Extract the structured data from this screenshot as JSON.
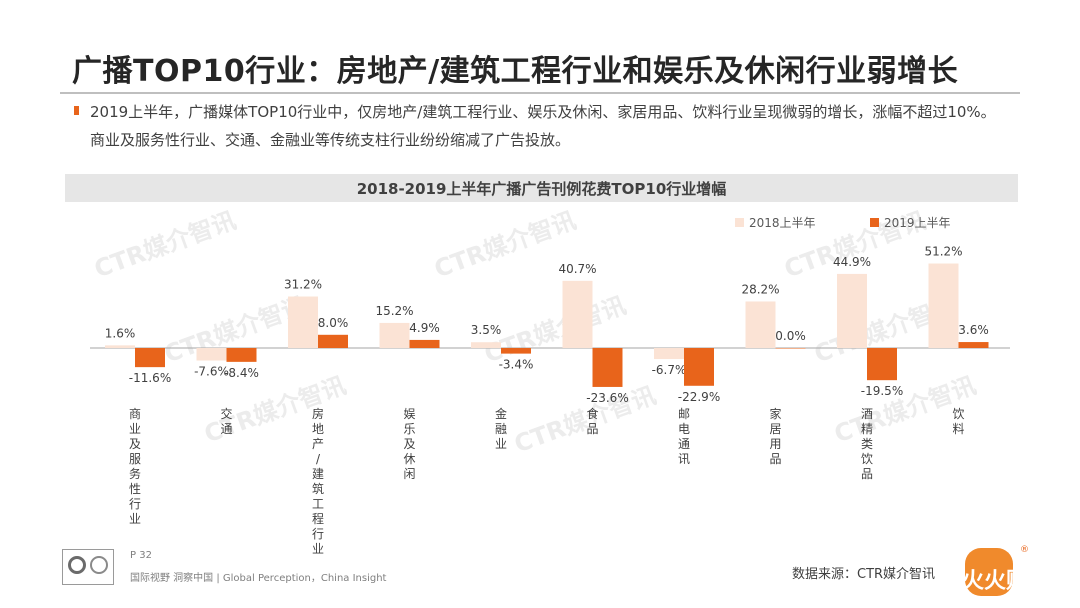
{
  "page": {
    "title": "广播TOP10行业：房地产/建筑工程行业和娱乐及休闲行业弱增长",
    "bullet": "2019上半年，广播媒体TOP10行业中，仅房地产/建筑工程行业、娱乐及休闲、家居用品、饮料行业呈现微弱的增长，涨幅不超过10%。商业及服务性行业、交通、金融业等传统支柱行业纷纷缩减了广告投放。",
    "page_no": "P 32",
    "footer_tag": "国际视野 洞察中国 | Global Perception，China Insight",
    "source": "数据来源：CTR媒介智讯",
    "watermark": "CTR媒介智讯",
    "overlay_label": "火火财经",
    "accent": "#e8641b"
  },
  "chart_data": {
    "type": "bar",
    "title": "2018-2019上半年广播广告刊例花费TOP10行业增幅",
    "categories": [
      "商业及服务性行业",
      "交通",
      "房地产/建筑工程行业",
      "娱乐及休闲",
      "金融业",
      "食品",
      "邮电通讯",
      "家居用品",
      "酒精类饮品",
      "饮料"
    ],
    "series": [
      {
        "name": "2018上半年",
        "color": "#fbe3d5",
        "values": [
          1.6,
          -7.6,
          31.2,
          15.2,
          3.5,
          40.7,
          -6.7,
          28.2,
          44.9,
          51.2
        ],
        "labels": [
          "1.6%",
          "-7.6%",
          "31.2%",
          "15.2%",
          "3.5%",
          "40.7%",
          "-6.7%",
          "28.2%",
          "44.9%",
          "51.2%"
        ]
      },
      {
        "name": "2019上半年",
        "color": "#e8641b",
        "values": [
          -11.6,
          -8.4,
          8.0,
          4.9,
          -3.4,
          -23.6,
          -22.9,
          0.0,
          -19.5,
          3.6
        ],
        "labels": [
          "-11.6%",
          "-8.4%",
          "8.0%",
          "4.9%",
          "-3.4%",
          "-23.6%",
          "-22.9%",
          "0.0%",
          "-19.5%",
          "3.6%"
        ]
      }
    ],
    "legend_position": "top-right",
    "grid": false
  }
}
